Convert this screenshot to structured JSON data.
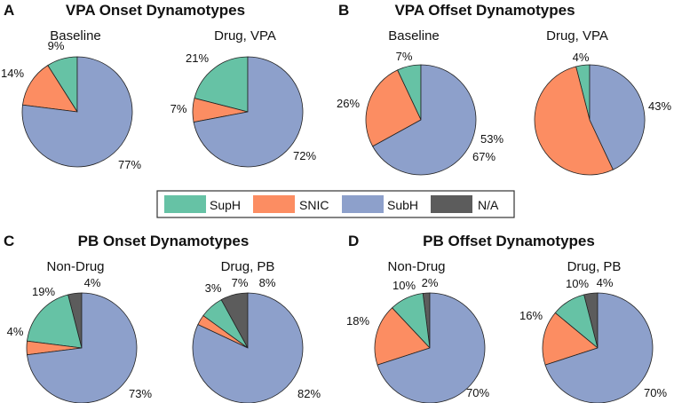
{
  "legend": [
    {
      "key": "SupH",
      "label": "SupH",
      "color": "#66c2a5"
    },
    {
      "key": "SNIC",
      "label": "SNIC",
      "color": "#fc8d62"
    },
    {
      "key": "SubH",
      "label": "SubH",
      "color": "#8da0cb"
    },
    {
      "key": "NA",
      "label": "N/A",
      "color": "#5c5c5c"
    }
  ],
  "chart_data": [
    {
      "panel": "A",
      "type": "pie",
      "title": "VPA Onset Dynamotypes",
      "pies": [
        {
          "subtitle": "Baseline",
          "slices": [
            {
              "key": "SupH",
              "value": 9,
              "label": "9%"
            },
            {
              "key": "SNIC",
              "value": 14,
              "label": "14%"
            },
            {
              "key": "SubH",
              "value": 77,
              "label": "77%"
            }
          ]
        },
        {
          "subtitle": "Drug, VPA",
          "slices": [
            {
              "key": "SupH",
              "value": 21,
              "label": "21%"
            },
            {
              "key": "SNIC",
              "value": 7,
              "label": "7%"
            },
            {
              "key": "SubH",
              "value": 72,
              "label": "72%"
            }
          ]
        }
      ]
    },
    {
      "panel": "B",
      "type": "pie",
      "title": "VPA Offset Dynamotypes",
      "pies": [
        {
          "subtitle": "Baseline",
          "slices": [
            {
              "key": "SupH",
              "value": 7,
              "label": "7%"
            },
            {
              "key": "SNIC",
              "value": 26,
              "label": "26%"
            },
            {
              "key": "SubH",
              "value": 67,
              "label": "67%"
            }
          ]
        },
        {
          "subtitle": "Drug, VPA",
          "slices": [
            {
              "key": "SupH",
              "value": 4,
              "label": "4%"
            },
            {
              "key": "SNIC",
              "value": 53,
              "label": "53%"
            },
            {
              "key": "SubH",
              "value": 43,
              "label": "43%"
            }
          ]
        }
      ]
    },
    {
      "panel": "C",
      "type": "pie",
      "title": "PB Onset Dynamotypes",
      "pies": [
        {
          "subtitle": "Non-Drug",
          "slices": [
            {
              "key": "NA",
              "value": 4,
              "label": "4%"
            },
            {
              "key": "SupH",
              "value": 19,
              "label": "19%"
            },
            {
              "key": "SNIC",
              "value": 4,
              "label": "4%"
            },
            {
              "key": "SubH",
              "value": 73,
              "label": "73%"
            }
          ]
        },
        {
          "subtitle": "Drug, PB",
          "slices": [
            {
              "key": "NA",
              "value": 8,
              "label": "8%"
            },
            {
              "key": "SupH",
              "value": 7,
              "label": "7%"
            },
            {
              "key": "SNIC",
              "value": 3,
              "label": "3%"
            },
            {
              "key": "SubH",
              "value": 82,
              "label": "82%"
            }
          ]
        }
      ]
    },
    {
      "panel": "D",
      "type": "pie",
      "title": "PB Offset Dynamotypes",
      "pies": [
        {
          "subtitle": "Non-Drug",
          "slices": [
            {
              "key": "NA",
              "value": 2,
              "label": "2%"
            },
            {
              "key": "SupH",
              "value": 10,
              "label": "10%"
            },
            {
              "key": "SNIC",
              "value": 18,
              "label": "18%"
            },
            {
              "key": "SubH",
              "value": 70,
              "label": "70%"
            }
          ]
        },
        {
          "subtitle": "Drug, PB",
          "slices": [
            {
              "key": "NA",
              "value": 4,
              "label": "4%"
            },
            {
              "key": "SupH",
              "value": 10,
              "label": "10%"
            },
            {
              "key": "SNIC",
              "value": 16,
              "label": "16%"
            },
            {
              "key": "SubH",
              "value": 70,
              "label": "70%"
            }
          ]
        }
      ]
    }
  ]
}
